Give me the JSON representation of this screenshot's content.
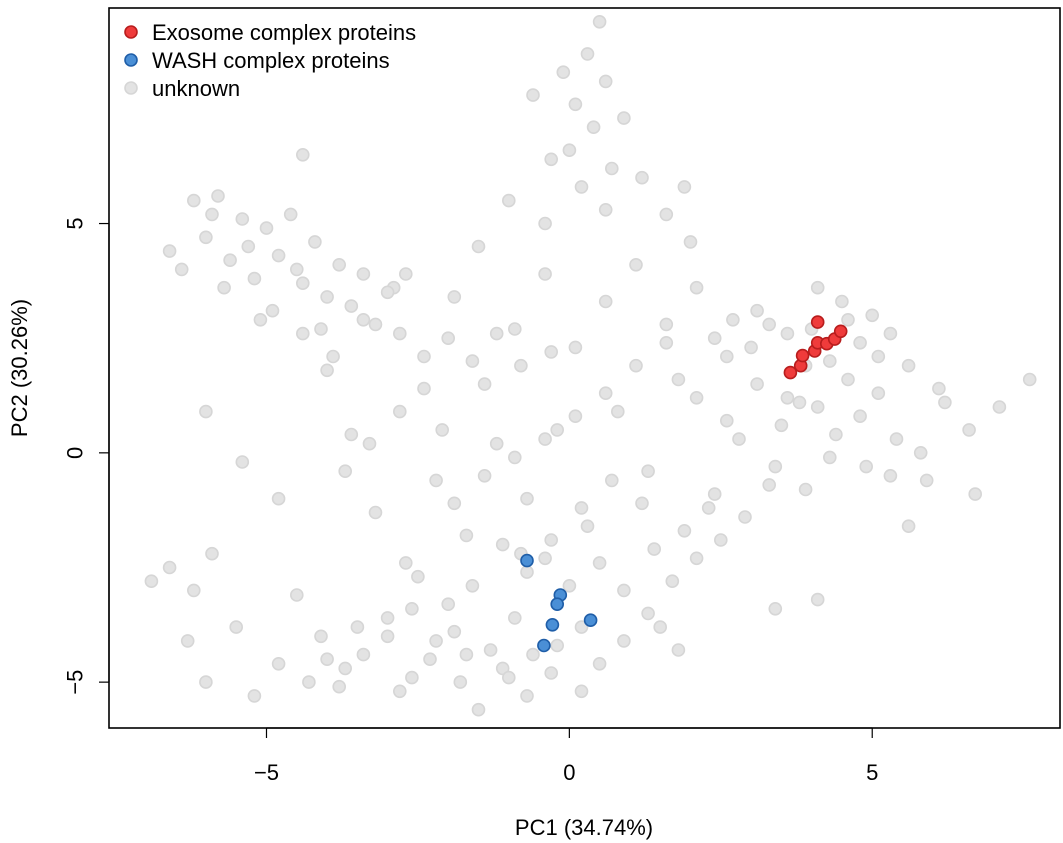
{
  "chart_data": {
    "type": "scatter",
    "title": "",
    "xlabel": "PC1 (34.74%)",
    "ylabel": "PC2 (30.26%)",
    "xlim": [
      -7.6,
      8.1
    ],
    "ylim": [
      -6.0,
      9.7
    ],
    "x_ticks": [
      -5,
      0,
      5
    ],
    "x_tick_labels": [
      "−5",
      "0",
      "5"
    ],
    "y_ticks": [
      -5,
      0,
      5
    ],
    "y_tick_labels": [
      "−5",
      "0",
      "5"
    ],
    "grid": false,
    "legend_position": "top-left",
    "series": [
      {
        "name": "unknown",
        "color": "#e3e3e3",
        "stroke": "#d6d6d6",
        "points": [
          [
            -6.9,
            -2.8
          ],
          [
            -6.6,
            -2.5
          ],
          [
            -6.2,
            -3.0
          ],
          [
            -5.9,
            -2.2
          ],
          [
            -5.5,
            -3.8
          ],
          [
            -5.2,
            -5.3
          ],
          [
            -4.8,
            -4.6
          ],
          [
            -4.5,
            -3.1
          ],
          [
            -4.1,
            -4.0
          ],
          [
            -3.8,
            -5.1
          ],
          [
            -3.4,
            -4.4
          ],
          [
            -3.0,
            -3.6
          ],
          [
            -2.6,
            -4.9
          ],
          [
            -2.2,
            -4.1
          ],
          [
            -1.8,
            -5.0
          ],
          [
            -1.5,
            -5.6
          ],
          [
            -1.1,
            -4.7
          ],
          [
            -0.7,
            -5.3
          ],
          [
            -0.3,
            -4.8
          ],
          [
            0.2,
            -5.2
          ],
          [
            0.5,
            -4.6
          ],
          [
            1.3,
            -3.5
          ],
          [
            1.8,
            -4.3
          ],
          [
            3.4,
            -3.4
          ],
          [
            4.1,
            -3.2
          ],
          [
            -6.0,
            0.9
          ],
          [
            -5.4,
            -0.2
          ],
          [
            -4.8,
            -1.0
          ],
          [
            -6.3,
            -4.1
          ],
          [
            -6.0,
            -5.0
          ],
          [
            5.6,
            -1.6
          ],
          [
            6.7,
            -0.9
          ],
          [
            7.6,
            1.6
          ],
          [
            7.1,
            1.0
          ],
          [
            6.6,
            0.5
          ],
          [
            6.1,
            1.4
          ],
          [
            5.8,
            0.0
          ],
          [
            5.3,
            -0.5
          ],
          [
            4.8,
            0.8
          ],
          [
            4.3,
            -0.1
          ],
          [
            3.8,
            1.1
          ],
          [
            3.3,
            -0.7
          ],
          [
            2.8,
            0.3
          ],
          [
            2.3,
            -1.2
          ],
          [
            1.8,
            1.6
          ],
          [
            1.3,
            -0.4
          ],
          [
            0.8,
            0.9
          ],
          [
            0.3,
            -1.6
          ],
          [
            -0.2,
            0.5
          ],
          [
            -0.7,
            -1.0
          ],
          [
            -1.2,
            0.2
          ],
          [
            -1.7,
            -1.8
          ],
          [
            -2.2,
            -0.6
          ],
          [
            -2.7,
            -2.4
          ],
          [
            -3.2,
            -1.3
          ],
          [
            -3.6,
            0.4
          ],
          [
            -4.0,
            1.8
          ],
          [
            -4.4,
            2.6
          ],
          [
            -3.4,
            2.9
          ],
          [
            -2.9,
            3.6
          ],
          [
            -2.4,
            2.1
          ],
          [
            -1.9,
            3.4
          ],
          [
            -1.4,
            1.5
          ],
          [
            -0.9,
            2.7
          ],
          [
            -0.4,
            3.9
          ],
          [
            0.1,
            2.3
          ],
          [
            0.6,
            3.3
          ],
          [
            1.1,
            4.1
          ],
          [
            1.6,
            2.8
          ],
          [
            2.1,
            3.6
          ],
          [
            2.6,
            2.1
          ],
          [
            3.1,
            3.1
          ],
          [
            3.6,
            2.6
          ],
          [
            4.1,
            3.6
          ],
          [
            4.6,
            2.9
          ],
          [
            5.1,
            2.1
          ],
          [
            5.6,
            1.9
          ],
          [
            6.2,
            1.1
          ],
          [
            3.9,
            1.9
          ],
          [
            3.5,
            0.6
          ],
          [
            -6.2,
            5.5
          ],
          [
            -6.0,
            4.7
          ],
          [
            -5.8,
            5.6
          ],
          [
            -5.6,
            4.2
          ],
          [
            -5.4,
            5.1
          ],
          [
            -5.2,
            3.8
          ],
          [
            -5.0,
            4.9
          ],
          [
            -4.8,
            4.3
          ],
          [
            -4.6,
            5.2
          ],
          [
            -4.4,
            3.7
          ],
          [
            -4.2,
            4.6
          ],
          [
            -4.0,
            3.4
          ],
          [
            -3.8,
            4.1
          ],
          [
            -3.6,
            3.2
          ],
          [
            -3.4,
            3.9
          ],
          [
            -3.2,
            2.8
          ],
          [
            -3.0,
            3.5
          ],
          [
            -2.8,
            2.6
          ],
          [
            -6.4,
            4.0
          ],
          [
            -6.6,
            4.4
          ],
          [
            -5.7,
            3.6
          ],
          [
            -5.3,
            4.5
          ],
          [
            -4.9,
            3.1
          ],
          [
            -4.5,
            4.0
          ],
          [
            -4.1,
            2.7
          ],
          [
            -5.9,
            5.2
          ],
          [
            -4.4,
            6.5
          ],
          [
            -2.7,
            3.9
          ],
          [
            -3.9,
            2.1
          ],
          [
            -5.1,
            2.9
          ],
          [
            0.5,
            9.4
          ],
          [
            0.3,
            8.7
          ],
          [
            0.6,
            8.1
          ],
          [
            0.1,
            7.6
          ],
          [
            0.4,
            7.1
          ],
          [
            0.0,
            6.6
          ],
          [
            0.7,
            6.2
          ],
          [
            0.2,
            5.8
          ],
          [
            -0.3,
            6.4
          ],
          [
            -0.6,
            7.8
          ],
          [
            0.9,
            7.3
          ],
          [
            -0.1,
            8.3
          ],
          [
            0.6,
            5.3
          ],
          [
            -0.4,
            5.0
          ],
          [
            1.2,
            6.0
          ],
          [
            1.6,
            5.2
          ],
          [
            2.0,
            4.6
          ],
          [
            -1.0,
            5.5
          ],
          [
            -1.5,
            4.5
          ],
          [
            1.9,
            5.8
          ],
          [
            -0.7,
            -2.6
          ],
          [
            -1.1,
            -2.0
          ],
          [
            -1.6,
            -2.9
          ],
          [
            -2.0,
            -3.3
          ],
          [
            -2.5,
            -2.7
          ],
          [
            -0.9,
            -3.6
          ],
          [
            -0.4,
            -2.3
          ],
          [
            0.0,
            -2.9
          ],
          [
            0.5,
            -2.4
          ],
          [
            0.9,
            -3.0
          ],
          [
            1.4,
            -2.1
          ],
          [
            1.9,
            -1.7
          ],
          [
            2.4,
            -0.9
          ],
          [
            2.9,
            -1.4
          ],
          [
            3.4,
            -0.3
          ],
          [
            3.9,
            -0.8
          ],
          [
            4.4,
            0.4
          ],
          [
            4.9,
            -0.3
          ],
          [
            5.4,
            0.3
          ],
          [
            5.9,
            -0.6
          ],
          [
            -1.9,
            -1.1
          ],
          [
            -1.4,
            -0.5
          ],
          [
            -0.9,
            -0.1
          ],
          [
            -0.4,
            0.3
          ],
          [
            0.1,
            0.8
          ],
          [
            0.6,
            1.3
          ],
          [
            1.1,
            1.9
          ],
          [
            1.6,
            2.4
          ],
          [
            2.1,
            1.2
          ],
          [
            2.6,
            0.7
          ],
          [
            3.1,
            1.5
          ],
          [
            3.6,
            1.2
          ],
          [
            4.1,
            1.0
          ],
          [
            4.6,
            1.6
          ],
          [
            5.1,
            1.3
          ],
          [
            1.2,
            -1.1
          ],
          [
            0.7,
            -0.6
          ],
          [
            0.2,
            -1.2
          ],
          [
            -0.3,
            -1.9
          ],
          [
            -0.8,
            -2.2
          ],
          [
            -3.0,
            -4.0
          ],
          [
            -2.6,
            -3.4
          ],
          [
            -3.5,
            -3.8
          ],
          [
            -4.0,
            -4.5
          ],
          [
            -4.3,
            -5.0
          ],
          [
            -3.7,
            -4.7
          ],
          [
            -2.3,
            -4.5
          ],
          [
            -1.9,
            -3.9
          ],
          [
            -1.3,
            -4.3
          ],
          [
            -1.0,
            -4.9
          ],
          [
            3.0,
            2.3
          ],
          [
            3.3,
            2.8
          ],
          [
            2.7,
            2.9
          ],
          [
            2.4,
            2.5
          ],
          [
            4.3,
            2.0
          ],
          [
            4.5,
            3.3
          ],
          [
            5.0,
            3.0
          ],
          [
            5.3,
            2.6
          ],
          [
            4.8,
            2.4
          ],
          [
            4.0,
            2.7
          ],
          [
            -2.0,
            2.5
          ],
          [
            -1.6,
            2.0
          ],
          [
            -1.2,
            2.6
          ],
          [
            -0.8,
            1.9
          ],
          [
            -0.3,
            2.2
          ],
          [
            -2.4,
            1.4
          ],
          [
            -2.8,
            0.9
          ],
          [
            -3.3,
            0.2
          ],
          [
            -3.7,
            -0.4
          ],
          [
            -2.1,
            0.5
          ],
          [
            1.7,
            -2.8
          ],
          [
            2.1,
            -2.3
          ],
          [
            2.5,
            -1.9
          ],
          [
            0.9,
            -4.1
          ],
          [
            1.5,
            -3.8
          ],
          [
            -0.2,
            -4.2
          ],
          [
            -0.6,
            -4.4
          ],
          [
            0.2,
            -3.8
          ],
          [
            -1.7,
            -4.4
          ],
          [
            -2.8,
            -5.2
          ]
        ]
      },
      {
        "name": "Exosome complex proteins",
        "color": "#ef3b3b",
        "stroke": "#b81d1d",
        "points": [
          [
            3.65,
            1.75
          ],
          [
            3.82,
            1.9
          ],
          [
            3.85,
            2.12
          ],
          [
            4.05,
            2.22
          ],
          [
            4.1,
            2.4
          ],
          [
            4.25,
            2.38
          ],
          [
            4.38,
            2.48
          ],
          [
            4.48,
            2.65
          ],
          [
            4.1,
            2.85
          ]
        ]
      },
      {
        "name": "WASH complex proteins",
        "color": "#4a8fd6",
        "stroke": "#1f5ea8",
        "points": [
          [
            -0.7,
            -2.35
          ],
          [
            -0.15,
            -3.1
          ],
          [
            -0.2,
            -3.3
          ],
          [
            -0.28,
            -3.75
          ],
          [
            -0.42,
            -4.2
          ],
          [
            0.35,
            -3.65
          ]
        ]
      }
    ]
  },
  "legend": {
    "items": [
      {
        "label": "Exosome complex proteins",
        "color": "#ef3b3b",
        "stroke": "#b81d1d"
      },
      {
        "label": "WASH complex proteins",
        "color": "#4a8fd6",
        "stroke": "#1f5ea8"
      },
      {
        "label": "unknown",
        "color": "#e3e3e3",
        "stroke": "#d6d6d6"
      }
    ]
  }
}
